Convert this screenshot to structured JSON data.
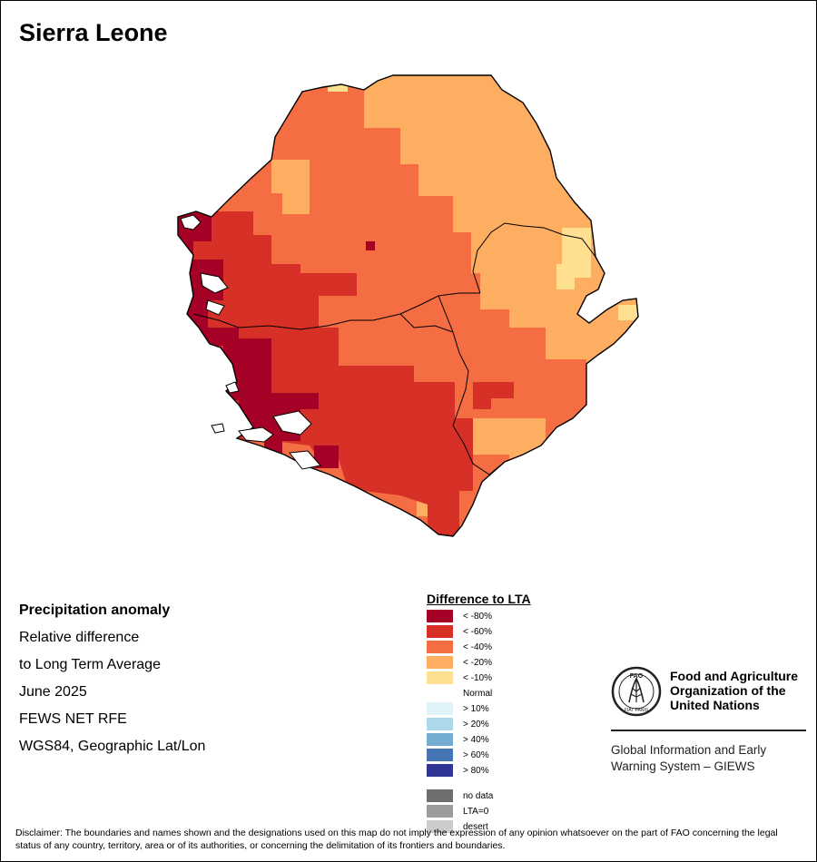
{
  "title": "Sierra Leone",
  "info": {
    "heading": "Precipitation anomaly",
    "line1": "Relative difference",
    "line2": "to Long Term Average",
    "period": "June 2025",
    "source": "FEWS NET RFE",
    "projection": "WGS84, Geographic Lat/Lon"
  },
  "legend": {
    "title": "Difference to LTA",
    "items": [
      {
        "label": "< -80%",
        "color": "#a50026"
      },
      {
        "label": "< -60%",
        "color": "#d73027"
      },
      {
        "label": "< -40%",
        "color": "#f46d43"
      },
      {
        "label": "< -20%",
        "color": "#fdae61"
      },
      {
        "label": "< -10%",
        "color": "#fee090"
      },
      {
        "label": "Normal",
        "color": "#ffffff"
      },
      {
        "label": "> 10%",
        "color": "#e0f3f8"
      },
      {
        "label": "> 20%",
        "color": "#abd9e9"
      },
      {
        "label": "> 40%",
        "color": "#74add1"
      },
      {
        "label": "> 60%",
        "color": "#4575b4"
      },
      {
        "label": "> 80%",
        "color": "#313695"
      },
      {
        "label": "no data",
        "color": "#6e6e6e"
      },
      {
        "label": "LTA=0",
        "color": "#9c9c9c"
      },
      {
        "label": "desert",
        "color": "#cccccc"
      }
    ]
  },
  "fao": {
    "name_line1": "Food and Agriculture",
    "name_line2": "Organization of the",
    "name_line3": "United Nations",
    "logo_text": "FAO",
    "motto": "FIAT PANIS",
    "system_line1": "Global Information and Early",
    "system_line2": "Warning System – GIEWS"
  },
  "disclaimer": "Disclaimer: The boundaries and names shown and the designations used on this map do not imply the expression of any opinion whatsoever on the part of FAO concerning the legal status of any country, territory, area or of its authorities, or concerning the delimitation of its frontiers and boundaries.",
  "colors": {
    "dry80": "#a50026",
    "dry60": "#d73027",
    "dry40": "#f46d43",
    "dry20": "#fdae61",
    "dry10": "#fee090"
  }
}
